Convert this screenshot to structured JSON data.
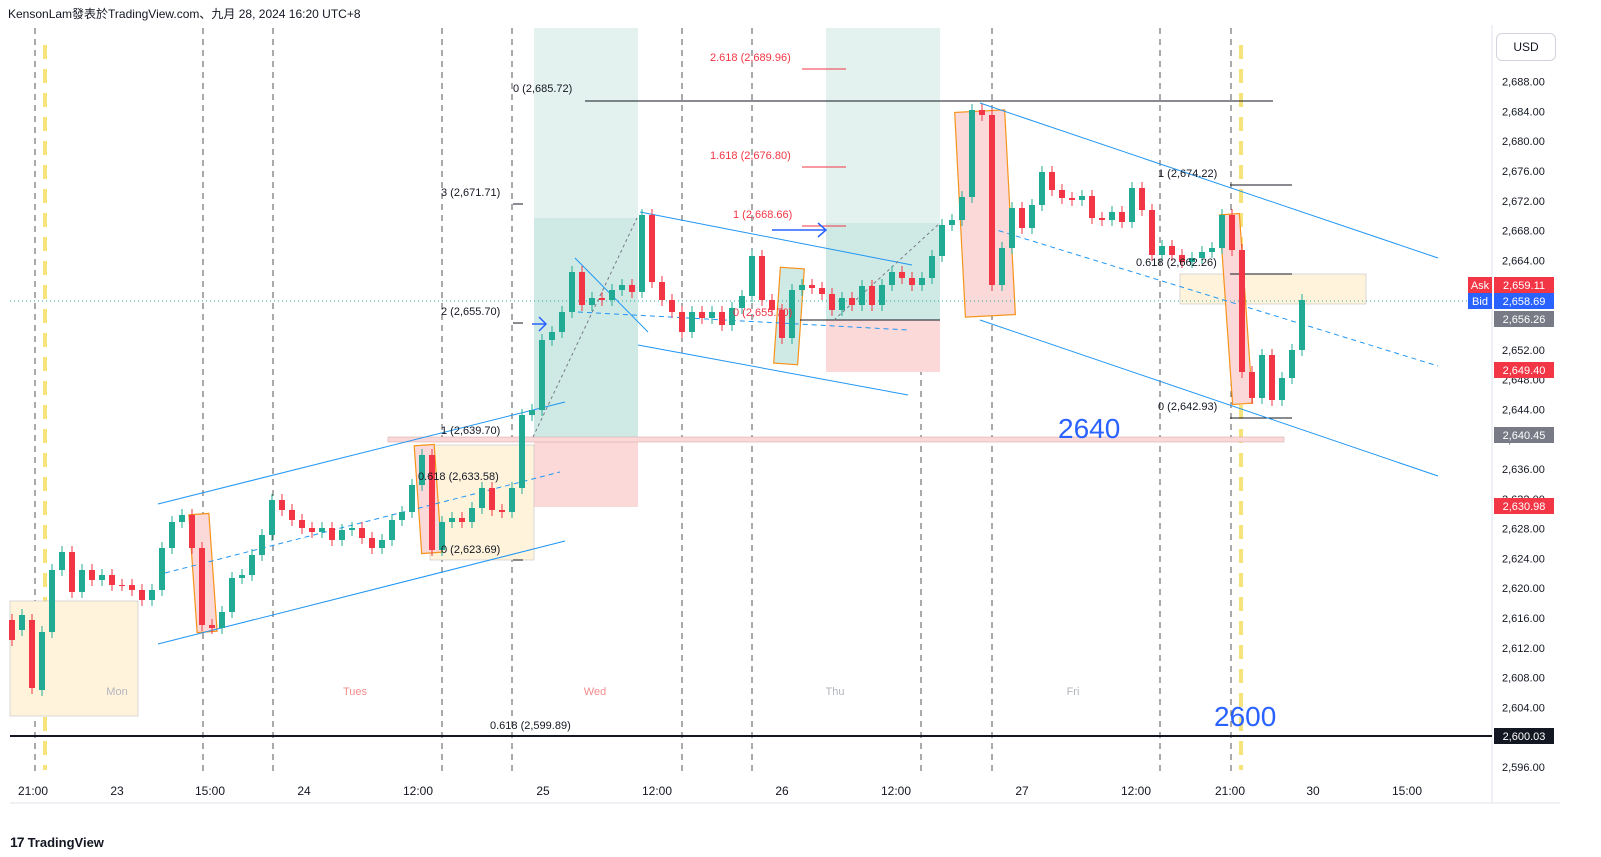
{
  "header": {
    "title": "KensonLam發表於TradingView.com、九月 28, 2024 16:20 UTC+8"
  },
  "brand": {
    "name": "TradingView"
  },
  "currency_button": "USD",
  "chart_data": {
    "type": "candlestick",
    "y_ticks": [
      "2,688.00",
      "2,684.00",
      "2,680.00",
      "2,676.00",
      "2,672.00",
      "2,668.00",
      "2,664.00",
      "2,660.00",
      "2,656.00",
      "2,652.00",
      "2,648.00",
      "2,644.00",
      "2,640.00",
      "2,636.00",
      "2,632.00",
      "2,628.00",
      "2,624.00",
      "2,620.00",
      "2,616.00",
      "2,612.00",
      "2,608.00",
      "2,604.00",
      "2,600.00",
      "2,596.00"
    ],
    "x_ticks": [
      "21:00",
      "23",
      "15:00",
      "24",
      "12:00",
      "25",
      "12:00",
      "26",
      "12:00",
      "27",
      "12:00",
      "21:00",
      "30",
      "15:00"
    ],
    "day_labels": [
      "Mon",
      "Tues",
      "Wed",
      "Thu",
      "Fri"
    ],
    "price_tags": [
      {
        "label": "Ask",
        "value": "2,659.11",
        "color": "#f23645"
      },
      {
        "label": "Bid",
        "value": "2,658.69",
        "color": "#2962ff"
      },
      {
        "label": "",
        "value": "2,656.26",
        "color": "#787b86"
      },
      {
        "label": "",
        "value": "2,649.40",
        "color": "#f23645"
      },
      {
        "label": "",
        "value": "2,640.45",
        "color": "#787b86"
      },
      {
        "label": "",
        "value": "2,630.98",
        "color": "#f23645"
      },
      {
        "label": "",
        "value": "2,600.03",
        "color": "#131722"
      }
    ],
    "fib_labels": [
      {
        "text": "0 (2,685.72)",
        "color": "#131722"
      },
      {
        "text": "3 (2,671.71)",
        "color": "#131722"
      },
      {
        "text": "2 (2,655.70)",
        "color": "#131722"
      },
      {
        "text": "1 (2,639.70)",
        "color": "#131722"
      },
      {
        "text": "0.618 (2,633.58)",
        "color": "#131722"
      },
      {
        "text": "0 (2,623.69)",
        "color": "#131722"
      },
      {
        "text": "2.618 (2,689.96)",
        "color": "#f23645"
      },
      {
        "text": "1.618 (2,676.80)",
        "color": "#f23645"
      },
      {
        "text": "1 (2,668.66)",
        "color": "#f23645"
      },
      {
        "text": "0 (2,655.70)",
        "color": "#f23645"
      },
      {
        "text": "1 (2,674.22)",
        "color": "#131722"
      },
      {
        "text": "0.618 (2,662.26)",
        "color": "#131722"
      },
      {
        "text": "0 (2,642.93)",
        "color": "#131722"
      },
      {
        "text": "0.618 (2,599.89)",
        "color": "#131722"
      }
    ],
    "annotations": [
      "2640",
      "2600"
    ],
    "colors": {
      "up": "#22ab94",
      "down": "#f23645",
      "channel": "#2196f3",
      "grid_dash": "#555555",
      "yellow_dash": "#f7e37c"
    }
  }
}
